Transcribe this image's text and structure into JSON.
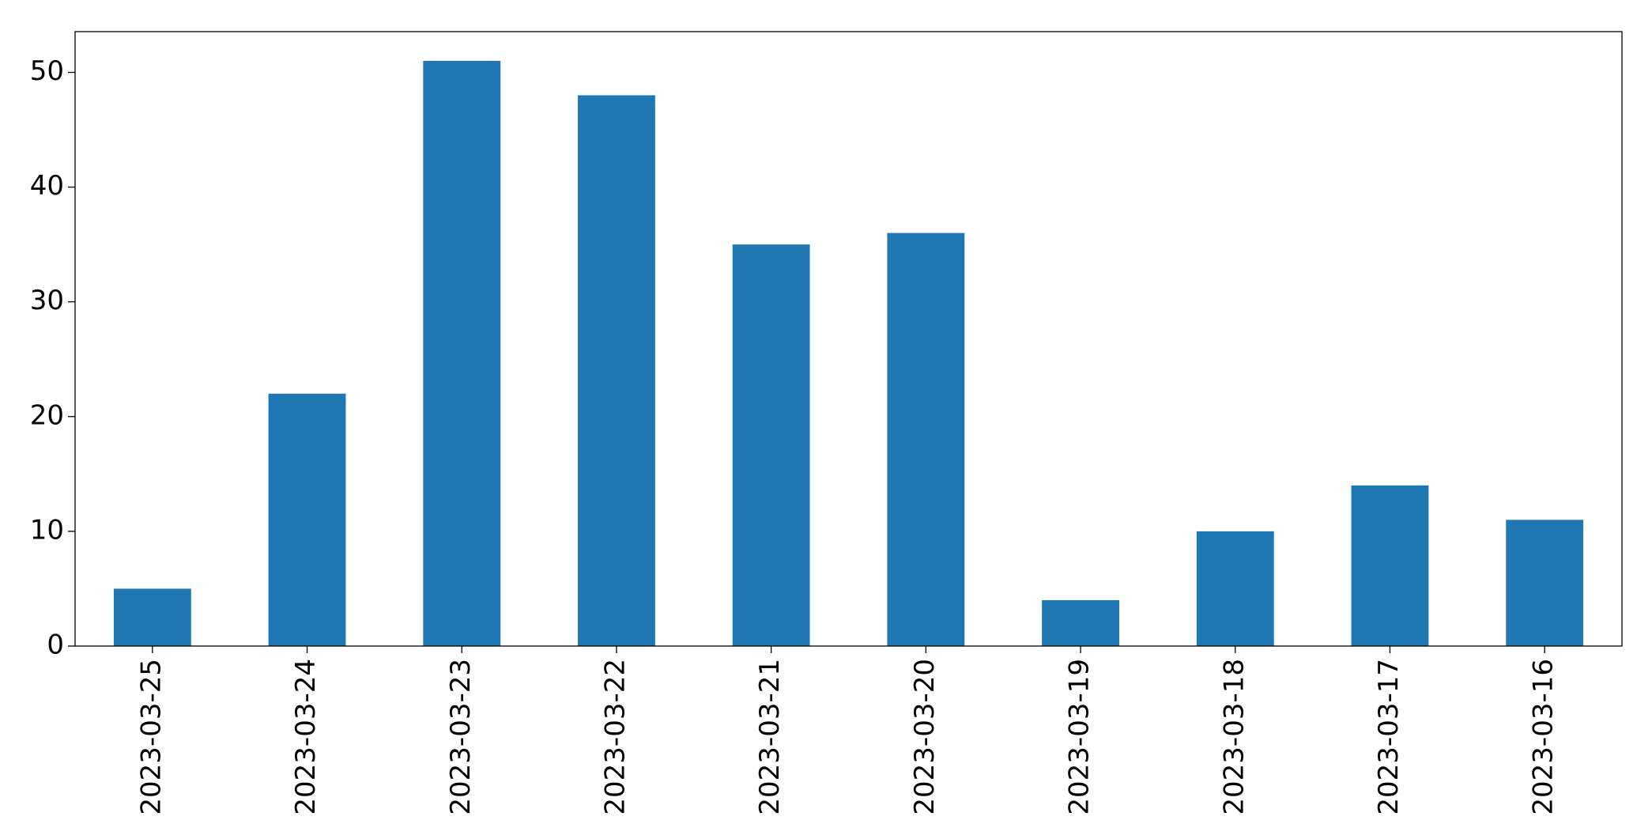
{
  "chart_data": {
    "type": "bar",
    "categories": [
      "2023-03-25",
      "2023-03-24",
      "2023-03-23",
      "2023-03-22",
      "2023-03-21",
      "2023-03-20",
      "2023-03-19",
      "2023-03-18",
      "2023-03-17",
      "2023-03-16"
    ],
    "values": [
      5,
      22,
      51,
      48,
      35,
      36,
      4,
      10,
      14,
      11
    ],
    "color": "#1f77b4",
    "ylim": [
      0,
      53.55
    ],
    "yticks": [
      0,
      10,
      20,
      30,
      40,
      50
    ],
    "grid": false
  }
}
